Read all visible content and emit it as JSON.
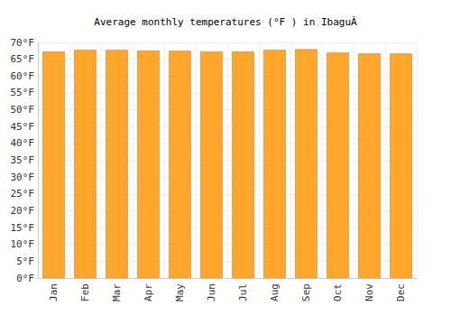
{
  "chart_data": {
    "type": "bar",
    "title": "Average monthly temperatures (°F ) in IbaguÃ",
    "categories": [
      "Jan",
      "Feb",
      "Mar",
      "Apr",
      "May",
      "Jun",
      "Jul",
      "Aug",
      "Sep",
      "Oct",
      "Nov",
      "Dec"
    ],
    "values": [
      67.3,
      67.8,
      67.8,
      67.6,
      67.5,
      67.3,
      67.3,
      67.8,
      68.0,
      67.0,
      66.7,
      66.7
    ],
    "color": "#ffa62b",
    "ylim": [
      0,
      70
    ],
    "yticks": [
      {
        "value": 0,
        "label": "0°F"
      },
      {
        "value": 5,
        "label": "5°F"
      },
      {
        "value": 10,
        "label": "10°F"
      },
      {
        "value": 15,
        "label": "15°F"
      },
      {
        "value": 20,
        "label": "20°F"
      },
      {
        "value": 25,
        "label": "25°F"
      },
      {
        "value": 30,
        "label": "30°F"
      },
      {
        "value": 35,
        "label": "35°F"
      },
      {
        "value": 40,
        "label": "40°F"
      },
      {
        "value": 45,
        "label": "45°F"
      },
      {
        "value": 50,
        "label": "50°F"
      },
      {
        "value": 55,
        "label": "55°F"
      },
      {
        "value": 60,
        "label": "60°F"
      },
      {
        "value": 65,
        "label": "65°F"
      },
      {
        "value": 70,
        "label": "70°F"
      }
    ],
    "grid": true
  }
}
